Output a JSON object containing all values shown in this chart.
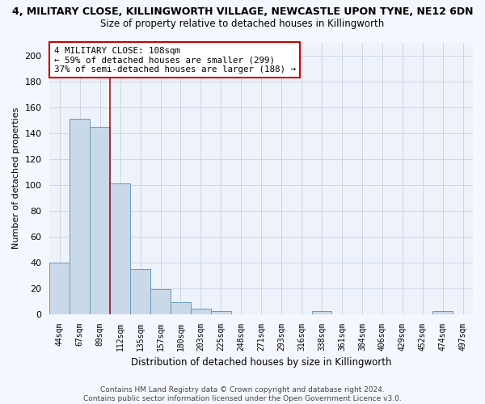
{
  "title_line1": "4, MILITARY CLOSE, KILLINGWORTH VILLAGE, NEWCASTLE UPON TYNE, NE12 6DN",
  "title_line2": "Size of property relative to detached houses in Killingworth",
  "xlabel": "Distribution of detached houses by size in Killingworth",
  "ylabel": "Number of detached properties",
  "bar_labels": [
    "44sqm",
    "67sqm",
    "89sqm",
    "112sqm",
    "135sqm",
    "157sqm",
    "180sqm",
    "203sqm",
    "225sqm",
    "248sqm",
    "271sqm",
    "293sqm",
    "316sqm",
    "338sqm",
    "361sqm",
    "384sqm",
    "406sqm",
    "429sqm",
    "452sqm",
    "474sqm",
    "497sqm"
  ],
  "bar_values": [
    40,
    151,
    145,
    101,
    35,
    19,
    9,
    4,
    2,
    0,
    0,
    0,
    0,
    2,
    0,
    0,
    0,
    0,
    0,
    2,
    0
  ],
  "bar_color": "#c9d9ea",
  "bar_edge_color": "#6699bb",
  "red_line_x": 2.5,
  "annotation_text": "4 MILITARY CLOSE: 108sqm\n← 59% of detached houses are smaller (299)\n37% of semi-detached houses are larger (188) →",
  "annotation_box_facecolor": "#ffffff",
  "annotation_box_edgecolor": "#cc0000",
  "vline_color": "#aa1111",
  "ylim": [
    0,
    210
  ],
  "yticks": [
    0,
    20,
    40,
    60,
    80,
    100,
    120,
    140,
    160,
    180,
    200
  ],
  "grid_color": "#c8d0e0",
  "bg_color": "#eef2fb",
  "fig_bg_color": "#f5f7ff",
  "footer_text": "Contains HM Land Registry data © Crown copyright and database right 2024.\nContains public sector information licensed under the Open Government Licence v3.0."
}
